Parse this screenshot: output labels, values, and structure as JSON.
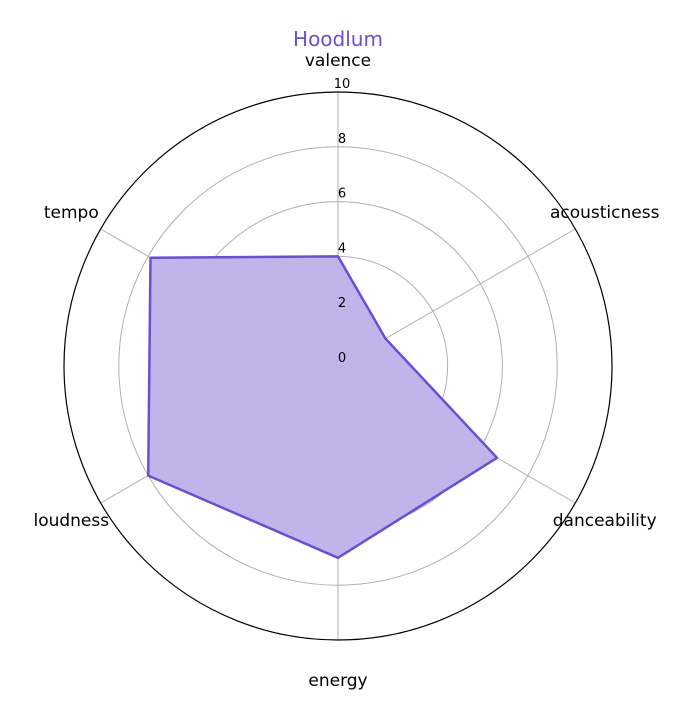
{
  "chart_data": {
    "type": "radar",
    "title": "Hoodlum",
    "categories": [
      "valence",
      "acousticness",
      "danceability",
      "energy",
      "loudness",
      "tempo"
    ],
    "series": [
      {
        "name": "Hoodlum",
        "values": [
          4.0,
          2.0,
          6.7,
          7.0,
          8.0,
          7.9
        ]
      }
    ],
    "rlim": [
      0,
      10
    ],
    "rticks": [
      "0",
      "2",
      "4",
      "6",
      "8",
      "10"
    ],
    "grid": true,
    "colors": {
      "series": "#6a4fd0",
      "fill": "#bfb5ea",
      "grid": "#b0b0b0",
      "title": "#6a4fd0"
    }
  }
}
